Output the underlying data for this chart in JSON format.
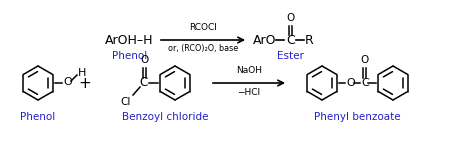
{
  "bg_color": "#ffffff",
  "black": "#000000",
  "blue": "#2222cc",
  "fig_width": 4.74,
  "fig_height": 1.55,
  "dpi": 100,
  "row1": {
    "reactant_label": "Phenol",
    "arrow_above": "RCOCl",
    "arrow_below": "or, (RCO)₂O, base",
    "product_label": "Ester"
  },
  "row2": {
    "phenol_label": "Phenol",
    "bcl_label": "Benzoyl chloride",
    "arrow_above": "NaOH",
    "arrow_below": "−HCl",
    "product_label": "Phenyl benzoate"
  }
}
